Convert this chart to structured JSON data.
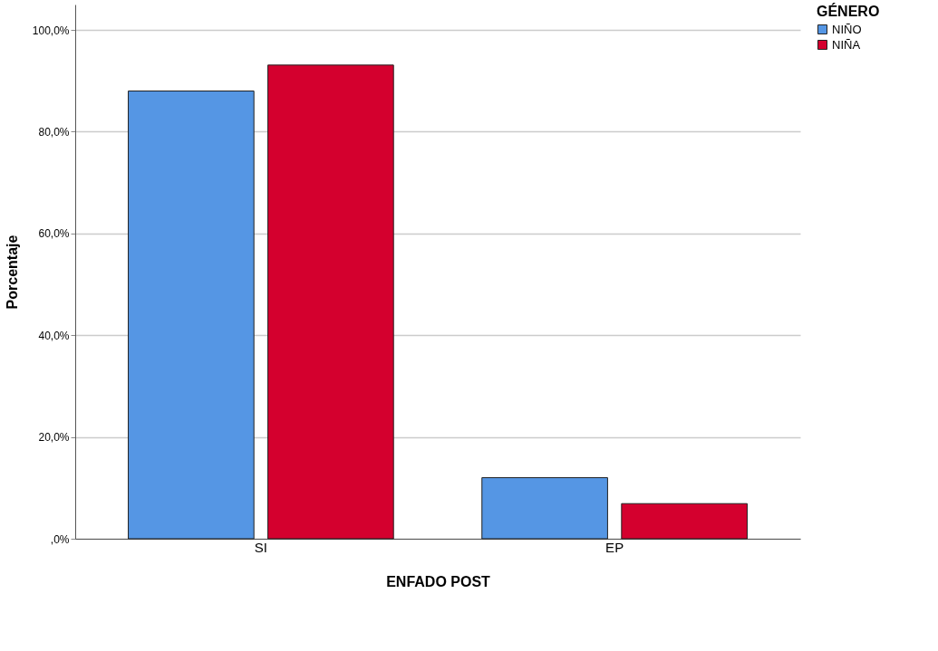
{
  "chart_data": {
    "type": "bar",
    "xlabel": "ENFADO POST",
    "ylabel": "Porcentaje",
    "legend_title": "GÉNERO",
    "categories": [
      "SI",
      "EP"
    ],
    "series": [
      {
        "name": "NIÑO",
        "color": "#5596e4",
        "values": [
          88.0,
          12.0
        ]
      },
      {
        "name": "NIÑA",
        "color": "#d4002e",
        "values": [
          93.1,
          6.9
        ]
      }
    ],
    "ylim": [
      0,
      105
    ],
    "yticks": [
      {
        "value": 0,
        "label": ",0%"
      },
      {
        "value": 20,
        "label": "20,0%"
      },
      {
        "value": 40,
        "label": "40,0%"
      },
      {
        "value": 60,
        "label": "60,0%"
      },
      {
        "value": 80,
        "label": "80,0%"
      },
      {
        "value": 100,
        "label": "100,0%"
      }
    ],
    "grid": "y",
    "legend": "top right"
  }
}
